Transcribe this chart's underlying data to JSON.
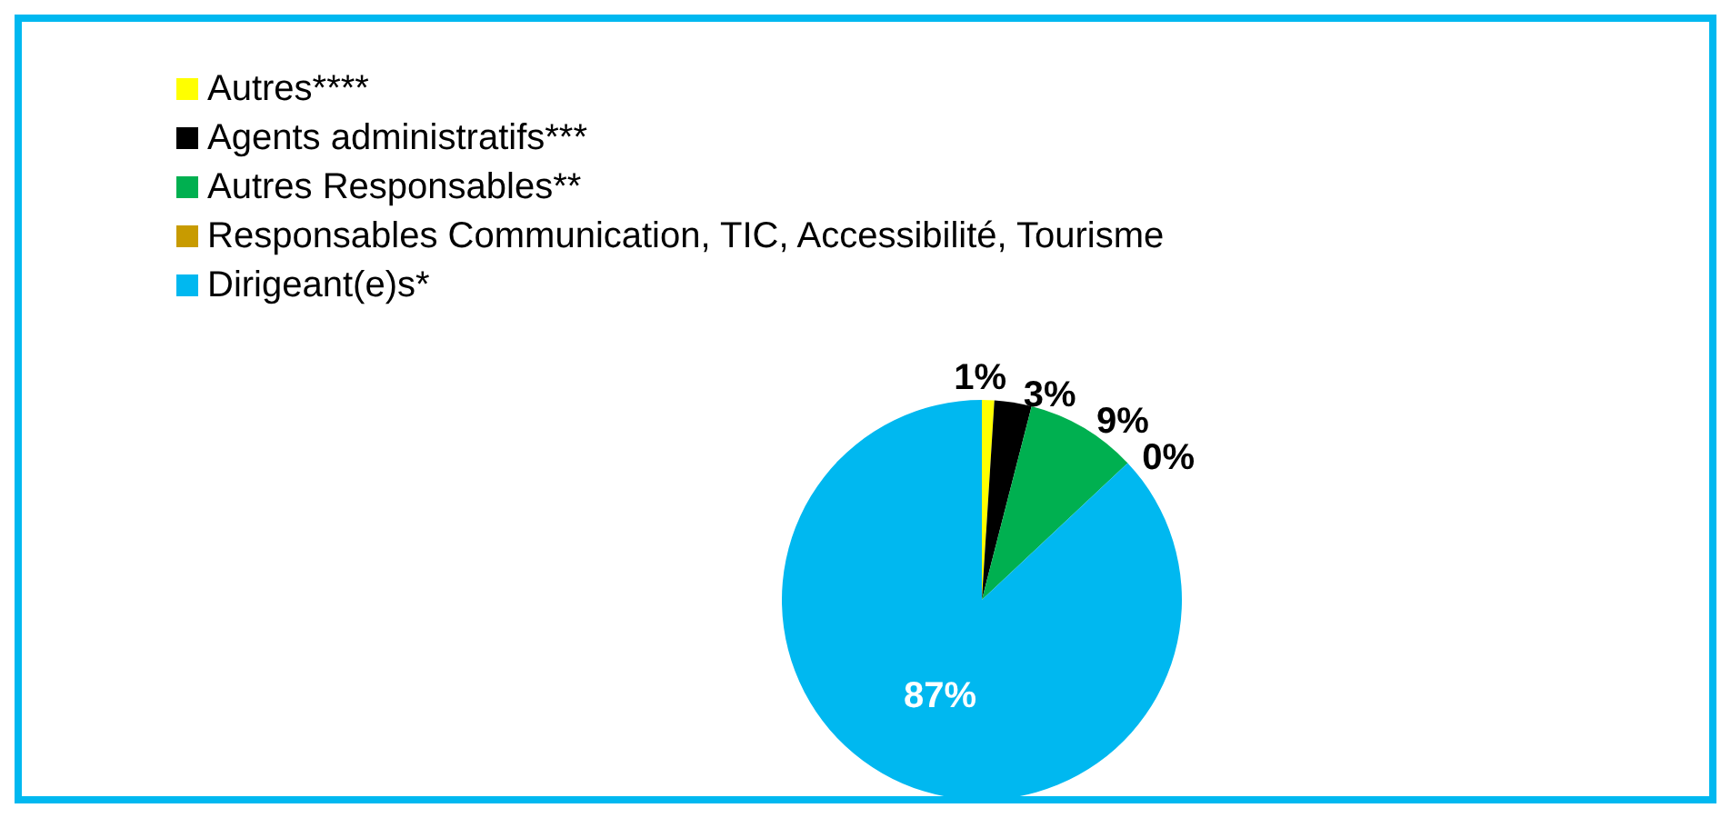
{
  "chart_data": {
    "type": "pie",
    "categories": [
      "Autres****",
      "Agents administratifs***",
      "Autres Responsables**",
      "Responsables Communication, TIC, Accessibilité, Tourisme",
      "Dirigeant(e)s*"
    ],
    "values": [
      1,
      3,
      9,
      0,
      87
    ],
    "colors": [
      "#ffff00",
      "#000000",
      "#00b050",
      "#c89b00",
      "#00b8f0"
    ],
    "value_labels": [
      "1%",
      "3%",
      "9%",
      "0%",
      "87%"
    ],
    "legend": "top left"
  }
}
